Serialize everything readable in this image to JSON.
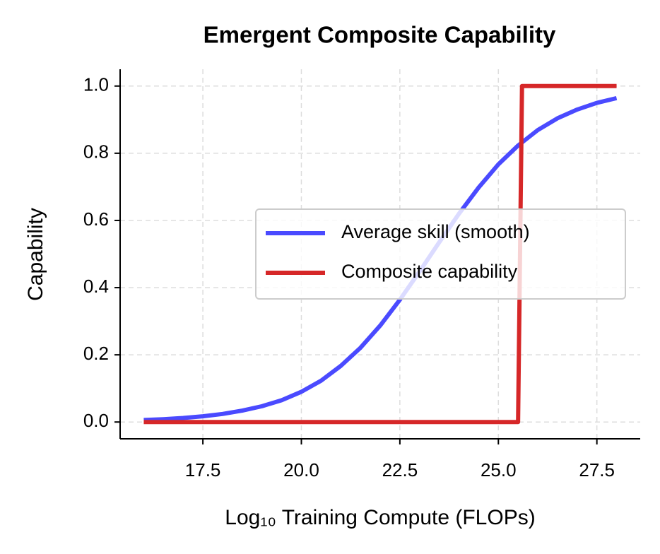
{
  "chart_data": {
    "type": "line",
    "title": "Emergent Composite Capability",
    "x_label": "Log₁₀ Training Compute (FLOPs)",
    "y_label": "Capability",
    "xlim": [
      15.4,
      28.6
    ],
    "ylim": [
      -0.05,
      1.05
    ],
    "xticks": [
      {
        "value": 17.5,
        "label": "17.5"
      },
      {
        "value": 20,
        "label": "20.0"
      },
      {
        "value": 22.5,
        "label": "22.5"
      },
      {
        "value": 25,
        "label": "25.0"
      },
      {
        "value": 27.5,
        "label": "27.5"
      }
    ],
    "yticks": [
      {
        "value": 0,
        "label": "0.0"
      },
      {
        "value": 0.2,
        "label": "0.2"
      },
      {
        "value": 0.4,
        "label": "0.4"
      },
      {
        "value": 0.6,
        "label": "0.6"
      },
      {
        "value": 0.8,
        "label": "0.8"
      },
      {
        "value": 1,
        "label": "1.0"
      }
    ],
    "grid": true,
    "legend": "center right",
    "series": [
      {
        "name": "Average skill (smooth)",
        "color": "#4a4aff",
        "x": [
          16,
          16.5,
          17,
          17.5,
          18,
          18.5,
          19,
          19.5,
          20,
          20.5,
          21,
          21.5,
          22,
          22.5,
          23,
          23.5,
          24,
          24.5,
          25,
          25.5,
          26,
          26.5,
          27,
          27.5,
          28
        ],
        "values": [
          0.006,
          0.0085,
          0.012,
          0.017,
          0.024,
          0.034,
          0.047,
          0.065,
          0.09,
          0.123,
          0.167,
          0.221,
          0.287,
          0.364,
          0.448,
          0.535,
          0.62,
          0.698,
          0.767,
          0.823,
          0.869,
          0.904,
          0.93,
          0.95,
          0.964
        ]
      },
      {
        "name": "Composite capability",
        "color": "#d62728",
        "x": [
          16,
          25.5,
          25.6,
          28
        ],
        "values": [
          0,
          0,
          1,
          1
        ]
      }
    ]
  }
}
